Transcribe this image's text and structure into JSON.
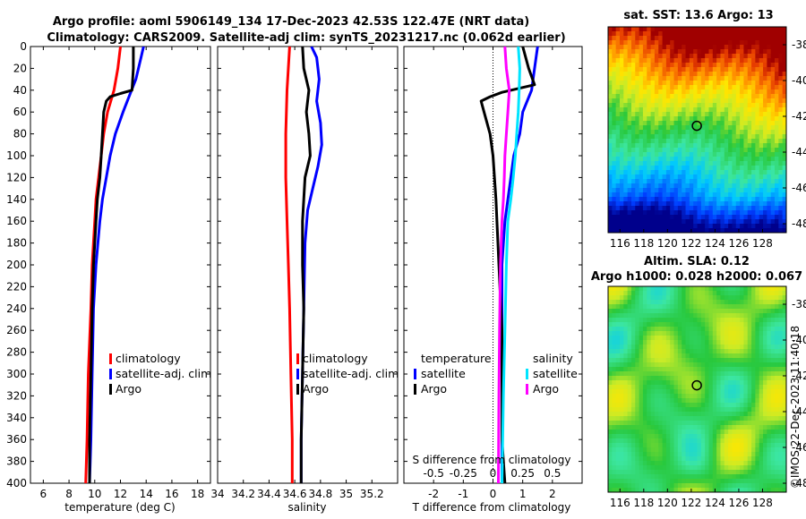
{
  "titles": {
    "line1": "Argo profile: aoml 5906149_134 17-Dec-2023 42.53S 122.47E (NRT data)",
    "line2": "Climatology: CARS2009. Satellite-adj clim: synTS_20231217.nc (0.062d earlier)",
    "sst": "sat. SST: 13.6 Argo: 13",
    "sla1": "Altim. SLA: 0.12",
    "sla2": "Argo h1000: 0.028 h2000: 0.067",
    "stamp": "©IMOS 22-Dec-2023 11:40:18"
  },
  "colors": {
    "climatology": "#ff0000",
    "satellite": "#0000ff",
    "argo": "#000000",
    "satellite_s": "#00e5ff",
    "argo_s": "#ff00ff"
  },
  "chart_data": [
    {
      "type": "line",
      "id": "temperature",
      "xlabel": "temperature (deg C)",
      "ylabel": "",
      "xlim": [
        5,
        19
      ],
      "ylim": [
        400,
        0
      ],
      "xticks": [
        6,
        8,
        10,
        12,
        14,
        16,
        18
      ],
      "yticks": [
        0,
        20,
        40,
        60,
        80,
        100,
        120,
        140,
        160,
        180,
        200,
        220,
        240,
        260,
        280,
        300,
        320,
        340,
        360,
        380,
        400
      ],
      "legend": [
        "climatology",
        "satellite-adj. clim",
        "Argo"
      ],
      "series": [
        {
          "name": "climatology",
          "color": "#ff0000",
          "depth": [
            0,
            20,
            40,
            60,
            80,
            100,
            120,
            140,
            160,
            200,
            240,
            300,
            360,
            400
          ],
          "values": [
            12.0,
            11.8,
            11.5,
            11.0,
            10.7,
            10.5,
            10.3,
            10.1,
            10.0,
            9.8,
            9.7,
            9.5,
            9.4,
            9.3
          ]
        },
        {
          "name": "satellite-adj. clim",
          "color": "#0000ff",
          "depth": [
            0,
            10,
            30,
            45,
            60,
            80,
            100,
            120,
            140,
            160,
            200,
            240,
            300,
            360,
            400
          ],
          "values": [
            13.8,
            13.6,
            13.2,
            12.7,
            12.2,
            11.6,
            11.2,
            10.9,
            10.6,
            10.4,
            10.1,
            9.9,
            9.8,
            9.7,
            9.6
          ]
        },
        {
          "name": "Argo",
          "color": "#000000",
          "depth": [
            0,
            20,
            40,
            43,
            46,
            50,
            60,
            80,
            100,
            120,
            140,
            160,
            200,
            240,
            300,
            360,
            400
          ],
          "values": [
            13.0,
            13.0,
            12.9,
            12.0,
            11.2,
            10.9,
            10.7,
            10.6,
            10.5,
            10.4,
            10.2,
            10.1,
            9.9,
            9.8,
            9.7,
            9.6,
            9.6
          ]
        }
      ]
    },
    {
      "type": "line",
      "id": "salinity",
      "xlabel": "salinity",
      "xlim": [
        34.0,
        35.4
      ],
      "ylim": [
        400,
        0
      ],
      "xticks": [
        34,
        34.2,
        34.4,
        34.6,
        34.8,
        35,
        35.2
      ],
      "legend": [
        "climatology",
        "satellite-adj. clim",
        "Argo"
      ],
      "series": [
        {
          "name": "climatology",
          "color": "#ff0000",
          "depth": [
            0,
            40,
            80,
            120,
            160,
            200,
            240,
            300,
            360,
            400
          ],
          "values": [
            34.56,
            34.54,
            34.53,
            34.53,
            34.54,
            34.55,
            34.56,
            34.57,
            34.58,
            34.58
          ]
        },
        {
          "name": "satellite-adj. clim",
          "color": "#0000ff",
          "depth": [
            0,
            10,
            30,
            50,
            70,
            90,
            110,
            130,
            150,
            180,
            240,
            300,
            360,
            400
          ],
          "values": [
            34.73,
            34.77,
            34.79,
            34.77,
            34.8,
            34.81,
            34.78,
            34.74,
            34.7,
            34.68,
            34.67,
            34.66,
            34.65,
            34.65
          ]
        },
        {
          "name": "Argo",
          "color": "#000000",
          "depth": [
            0,
            20,
            40,
            60,
            80,
            100,
            120,
            140,
            160,
            200,
            240,
            300,
            360,
            400
          ],
          "values": [
            34.66,
            34.67,
            34.71,
            34.69,
            34.71,
            34.72,
            34.68,
            34.67,
            34.66,
            34.66,
            34.67,
            34.66,
            34.65,
            34.65
          ]
        }
      ]
    },
    {
      "type": "line",
      "id": "difference",
      "xlabel": "T difference from climatology",
      "xlabel_top": "S difference from climatology",
      "xlim": [
        -3,
        3
      ],
      "ylim": [
        400,
        0
      ],
      "xticks": [
        -2,
        -1,
        0,
        1,
        2
      ],
      "xticks_top_labels": [
        "-0.5",
        "-0.25",
        "0",
        "0.25",
        "0.5"
      ],
      "xticks_top_values": [
        -2,
        -1,
        0,
        1,
        2
      ],
      "legend_left_title": "temperature",
      "legend_right_title": "salinity",
      "legend_left": [
        "satellite",
        "Argo"
      ],
      "legend_right": [
        "satellite",
        "Argo"
      ],
      "series": [
        {
          "name": "T satellite",
          "color": "#0000ff",
          "depth": [
            0,
            20,
            40,
            60,
            80,
            100,
            120,
            140,
            160,
            200,
            300,
            400
          ],
          "values": [
            1.5,
            1.4,
            1.3,
            1.0,
            0.9,
            0.7,
            0.6,
            0.5,
            0.4,
            0.3,
            0.3,
            0.3
          ]
        },
        {
          "name": "T Argo",
          "color": "#000000",
          "depth": [
            0,
            20,
            35,
            42,
            46,
            50,
            60,
            80,
            100,
            140,
            200,
            260,
            300,
            360,
            400
          ],
          "values": [
            1.0,
            1.2,
            1.4,
            0.3,
            -0.1,
            -0.4,
            -0.3,
            -0.1,
            0.0,
            0.1,
            0.2,
            0.3,
            0.3,
            0.3,
            0.4
          ]
        },
        {
          "name": "S satellite",
          "color": "#00e5ff",
          "depth": [
            0,
            20,
            40,
            60,
            80,
            100,
            120,
            140,
            160,
            200,
            260,
            320,
            400
          ],
          "values": [
            0.85,
            0.9,
            0.88,
            0.85,
            0.8,
            0.75,
            0.68,
            0.6,
            0.5,
            0.45,
            0.4,
            0.35,
            0.3
          ]
        },
        {
          "name": "S Argo",
          "color": "#ff00ff",
          "depth": [
            0,
            20,
            40,
            60,
            80,
            100,
            120,
            140,
            160,
            200,
            260,
            320,
            400
          ],
          "values": [
            0.4,
            0.45,
            0.55,
            0.5,
            0.45,
            0.4,
            0.38,
            0.35,
            0.3,
            0.25,
            0.22,
            0.2,
            0.18
          ]
        }
      ]
    },
    {
      "type": "heatmap",
      "id": "sst-map",
      "title": "sat. SST: 13.6 Argo: 13",
      "xlim": [
        115,
        130
      ],
      "ylim": [
        -48.5,
        -37
      ],
      "xticks": [
        116,
        118,
        120,
        122,
        124,
        126,
        128
      ],
      "yticks": [
        -38,
        -40,
        -42,
        -44,
        -46,
        -48
      ],
      "marker": {
        "lon": 122.47,
        "lat": -42.53
      }
    },
    {
      "type": "heatmap",
      "id": "sla-map",
      "title": "Altim. SLA: 0.12",
      "xlim": [
        115,
        130
      ],
      "ylim": [
        -48.5,
        -37
      ],
      "xticks": [
        116,
        118,
        120,
        122,
        124,
        126,
        128
      ],
      "yticks": [
        -38,
        -40,
        -42,
        -44,
        -46,
        -48
      ],
      "marker": {
        "lon": 122.47,
        "lat": -42.53
      }
    }
  ]
}
